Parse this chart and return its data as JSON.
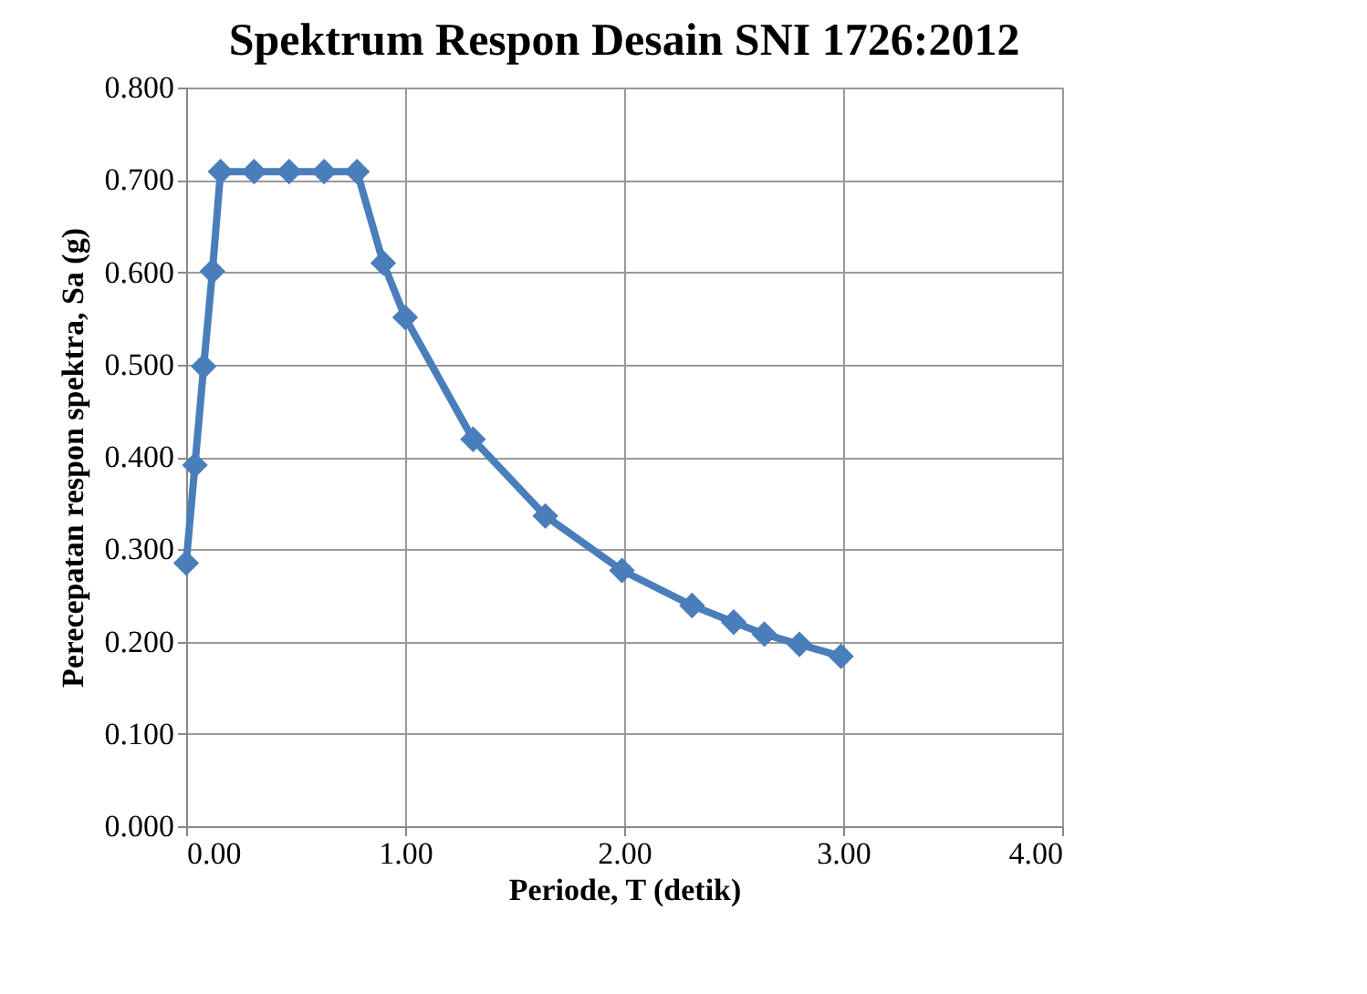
{
  "chart_data": {
    "type": "line",
    "title": "Spektrum Respon Desain  SNI 1726:2012",
    "xlabel": "Periode, T  (detik)",
    "ylabel": "Perecepatan respon spektra, Sa (g)",
    "series": [
      {
        "color": "#4a7ebb",
        "x": [
          0,
          0.04,
          0.08,
          0.12,
          0.157,
          0.31,
          0.47,
          0.63,
          0.78,
          0.9,
          1.0,
          1.31,
          1.64,
          1.99,
          2.31,
          2.5,
          2.64,
          2.8,
          2.99
        ],
        "values": [
          0.285,
          0.391,
          0.498,
          0.601,
          0.709,
          0.709,
          0.709,
          0.709,
          0.709,
          0.61,
          0.551,
          0.419,
          0.336,
          0.277,
          0.239,
          0.221,
          0.208,
          0.197,
          0.184
        ]
      }
    ],
    "xlim": [
      0,
      4
    ],
    "xticks": [
      {
        "value": 0,
        "label": "0.00"
      },
      {
        "value": 1,
        "label": "1.00"
      },
      {
        "value": 2,
        "label": "2.00"
      },
      {
        "value": 3,
        "label": "3.00"
      },
      {
        "value": 4,
        "label": "4.00"
      }
    ],
    "ylim": [
      0,
      0.8
    ],
    "yticks": [
      {
        "value": 0,
        "label": "0.000"
      },
      {
        "value": 0.1,
        "label": "0.100"
      },
      {
        "value": 0.2,
        "label": "0.200"
      },
      {
        "value": 0.3,
        "label": "0.300"
      },
      {
        "value": 0.4,
        "label": "0.400"
      },
      {
        "value": 0.5,
        "label": "0.500"
      },
      {
        "value": 0.6,
        "label": "0.600"
      },
      {
        "value": 0.7,
        "label": "0.700"
      },
      {
        "value": 0.8,
        "label": "0.800"
      }
    ],
    "grid": true,
    "marker": "diamond",
    "line_style": "solid"
  }
}
